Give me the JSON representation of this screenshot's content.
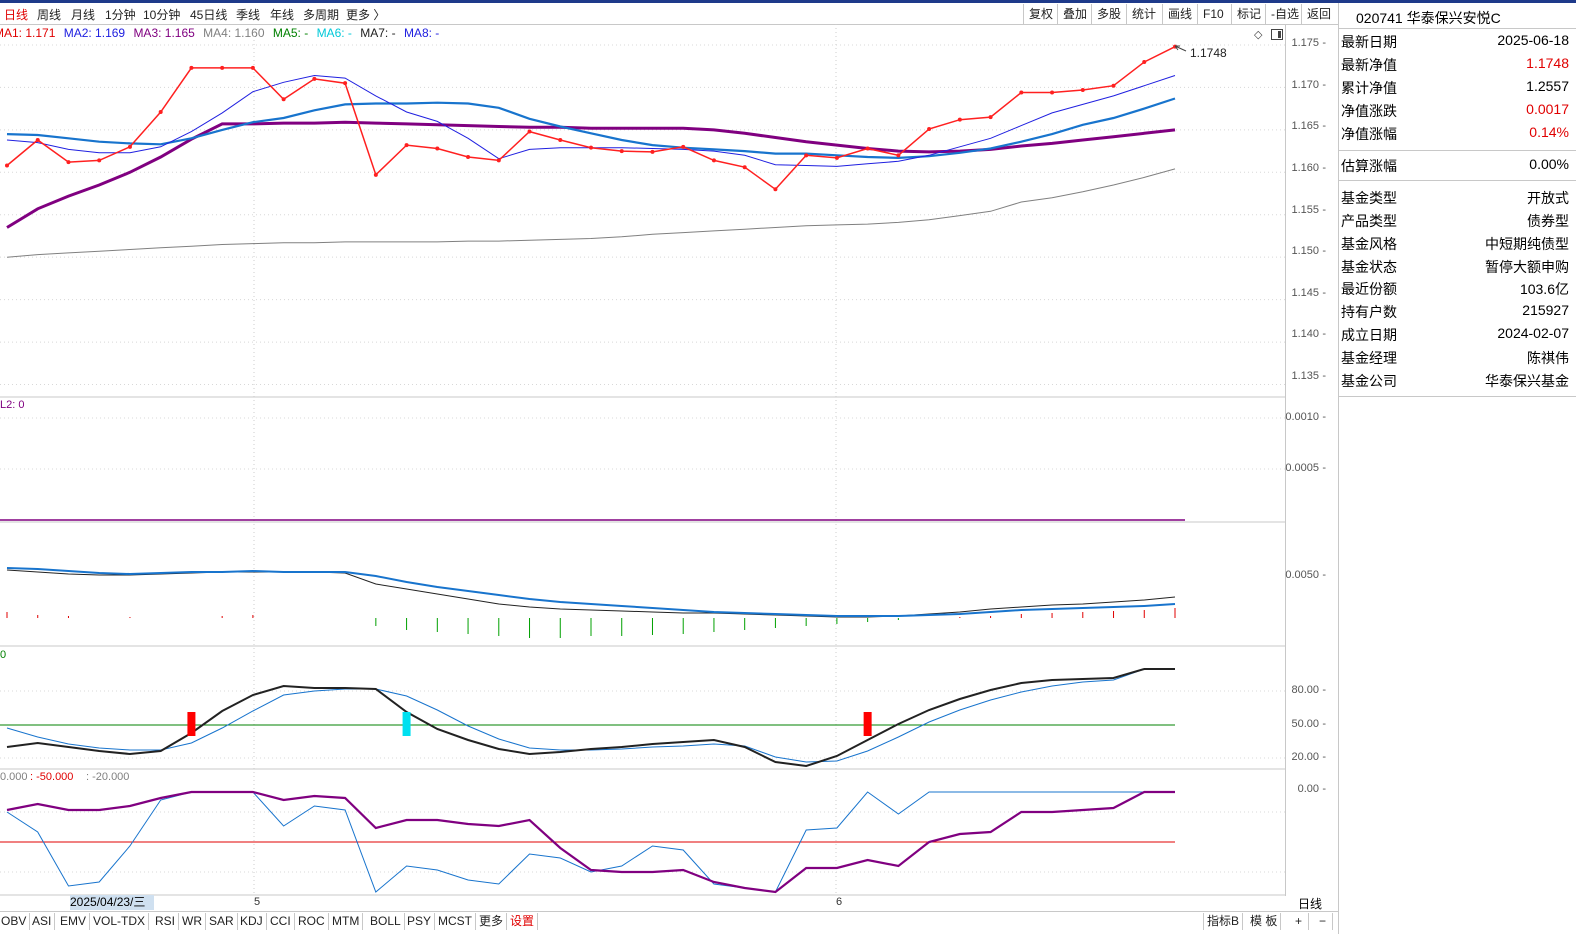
{
  "toolbar": {
    "periods": [
      "日线",
      "周线",
      "月线",
      "1分钟",
      "10分钟",
      "45日线",
      "季线",
      "年线",
      "多周期",
      "更多 〉"
    ],
    "buttons": [
      "复权",
      "叠加",
      "多股",
      "统计",
      "画线",
      "F10",
      "标记",
      "-自选",
      "返回"
    ]
  },
  "legend": [
    {
      "text": "MA1: 1.171",
      "color": "#e00000"
    },
    {
      "text": "MA2: 1.169",
      "color": "#2020e0"
    },
    {
      "text": "MA3: 1.165",
      "color": "#800080"
    },
    {
      "text": "MA4: 1.160",
      "color": "#808080"
    },
    {
      "text": "MA5: -",
      "color": "#008000"
    },
    {
      "text": "MA6: -",
      "color": "#00c8d8"
    },
    {
      "text": "MA7: -",
      "color": "#202020"
    },
    {
      "text": "MA8: -",
      "color": "#2020e0"
    }
  ],
  "axis": {
    "main_ticks": [
      "1.175",
      "1.170",
      "1.165",
      "1.160",
      "1.155",
      "1.150",
      "1.145",
      "1.140",
      "1.135"
    ],
    "sub1_ticks": [
      "0.0010",
      "0.0005"
    ],
    "sub2_ticks": [
      "0.0050"
    ],
    "sub3_ticks": [
      "80.00",
      "50.00",
      "20.00"
    ],
    "sub4_ticks": [
      "0.00"
    ]
  },
  "labels": {
    "last_price": "1.1748",
    "sub1_label": "L2: 0",
    "sub3_label": "0",
    "sub4_label_a": "0.000",
    "sub4_label_b": ": -50.000",
    "sub4_label_c": ": -20.000",
    "x_date": "2025/04/23/三",
    "x_month_5": "5",
    "x_month_6": "6",
    "day_button": "日线"
  },
  "indicators": [
    "OBV",
    "ASI",
    "EMV",
    "VOL-TDX",
    "RSI",
    "WR",
    "SAR",
    "KDJ",
    "CCI",
    "ROC",
    "MTM",
    "BOLL",
    "PSY",
    "MCST",
    "更多",
    "设置"
  ],
  "bottom_right": [
    "指标B",
    "模 板",
    "+",
    "−"
  ],
  "fund": {
    "title": "020741 华泰保兴安悦C",
    "rows": [
      {
        "k": "最新日期",
        "v": "2025-06-18",
        "red": false
      },
      {
        "k": "最新净值",
        "v": "1.1748",
        "red": true
      },
      {
        "k": "累计净值",
        "v": "1.2557",
        "red": false
      },
      {
        "k": "净值涨跌",
        "v": "0.0017",
        "red": true
      },
      {
        "k": "净值涨幅",
        "v": "0.14%",
        "red": true
      },
      {
        "k": "估算涨幅",
        "v": "0.00%",
        "red": false
      },
      {
        "k": "基金类型",
        "v": "开放式",
        "red": false
      },
      {
        "k": "产品类型",
        "v": "债券型",
        "red": false
      },
      {
        "k": "基金风格",
        "v": "中短期纯债型",
        "red": false
      },
      {
        "k": "基金状态",
        "v": "暂停大额申购",
        "red": false
      },
      {
        "k": "最近份额",
        "v": "103.6亿",
        "red": false
      },
      {
        "k": "持有户数",
        "v": "215927",
        "red": false
      },
      {
        "k": "成立日期",
        "v": "2024-02-07",
        "red": false
      },
      {
        "k": "基金经理",
        "v": "陈祺伟",
        "red": false
      },
      {
        "k": "基金公司",
        "v": "华泰保兴基金",
        "red": false
      }
    ]
  },
  "chart_data": {
    "type": "line",
    "title": "020741 华泰保兴安悦C",
    "ylim": [
      1.134,
      1.177
    ],
    "nav": [
      1.1608,
      1.1638,
      1.1612,
      1.1614,
      1.163,
      1.1671,
      1.1723,
      1.1723,
      1.1723,
      1.1686,
      1.171,
      1.1705,
      1.1597,
      1.1632,
      1.1628,
      1.1618,
      1.1614,
      1.1648,
      1.1638,
      1.1629,
      1.1625,
      1.1624,
      1.163,
      1.1614,
      1.1606,
      1.158,
      1.162,
      1.1617,
      1.1628,
      1.162,
      1.1651,
      1.1662,
      1.1665,
      1.1694,
      1.1694,
      1.1697,
      1.1702,
      1.173,
      1.1748
    ],
    "ma1": [
      1.1638,
      1.1635,
      1.1627,
      1.1623,
      1.1623,
      1.163,
      1.1648,
      1.167,
      1.1695,
      1.1706,
      1.1714,
      1.1711,
      1.169,
      1.1671,
      1.166,
      1.164,
      1.1616,
      1.1627,
      1.1629,
      1.1629,
      1.1629,
      1.1628,
      1.1627,
      1.1625,
      1.162,
      1.1609,
      1.1608,
      1.1607,
      1.161,
      1.1613,
      1.162,
      1.163,
      1.164,
      1.1655,
      1.167,
      1.168,
      1.169,
      1.1702,
      1.1714
    ],
    "ma2": [
      1.1645,
      1.1644,
      1.164,
      1.1636,
      1.1634,
      1.1633,
      1.164,
      1.165,
      1.1659,
      1.1664,
      1.1673,
      1.168,
      1.1681,
      1.1681,
      1.1682,
      1.1681,
      1.1676,
      1.1663,
      1.1654,
      1.1646,
      1.1638,
      1.1632,
      1.1629,
      1.1627,
      1.1625,
      1.1622,
      1.1622,
      1.162,
      1.1618,
      1.1617,
      1.1619,
      1.1623,
      1.1628,
      1.1636,
      1.1645,
      1.1656,
      1.1664,
      1.1675,
      1.1687
    ],
    "ma3": [
      1.1535,
      1.1557,
      1.1572,
      1.1585,
      1.16,
      1.1618,
      1.1639,
      1.1657,
      1.1657,
      1.1658,
      1.1658,
      1.1659,
      1.1658,
      1.1657,
      1.1656,
      1.1655,
      1.1654,
      1.1653,
      1.1653,
      1.1652,
      1.1652,
      1.1652,
      1.1652,
      1.165,
      1.1646,
      1.1641,
      1.1636,
      1.1632,
      1.1628,
      1.1625,
      1.1624,
      1.1625,
      1.1627,
      1.1631,
      1.1634,
      1.1638,
      1.1642,
      1.1646,
      1.165
    ],
    "ma4": [
      1.15,
      1.1503,
      1.1505,
      1.1507,
      1.1509,
      1.1511,
      1.1513,
      1.1515,
      1.1516,
      1.1517,
      1.1517,
      1.1518,
      1.1518,
      1.1518,
      1.1518,
      1.1519,
      1.1519,
      1.152,
      1.1521,
      1.1522,
      1.1524,
      1.1527,
      1.1529,
      1.1531,
      1.1533,
      1.1535,
      1.1537,
      1.1538,
      1.1539,
      1.1541,
      1.1544,
      1.1549,
      1.1554,
      1.1565,
      1.157,
      1.1577,
      1.1585,
      1.1594,
      1.1604
    ]
  }
}
